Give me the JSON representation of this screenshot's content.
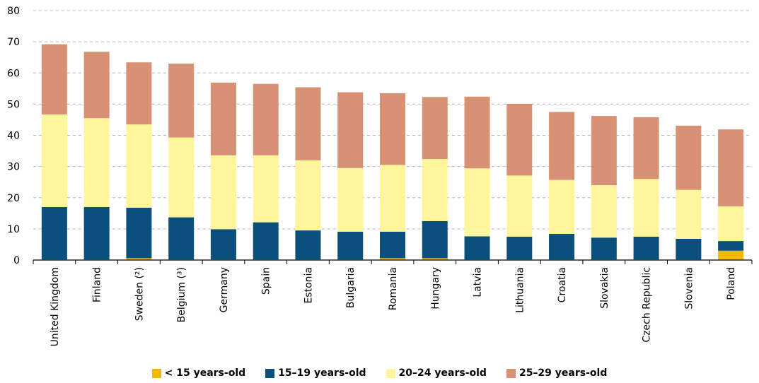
{
  "chart_data": {
    "type": "bar",
    "stacked": true,
    "title": "",
    "xlabel": "",
    "ylabel": "",
    "ylim": [
      0,
      80
    ],
    "yticks": [
      0,
      10,
      20,
      30,
      40,
      50,
      60,
      70,
      80
    ],
    "grid": "horizontal dashed",
    "legend_position": "bottom",
    "categories": [
      "United Kingdom",
      "Finland",
      "Sweden (²)",
      "Belgium (³)",
      "Germany",
      "Spain",
      "Estonia",
      "Bulgaria",
      "Romania",
      "Hungary",
      "Latvia",
      "Lithuania",
      "Croatia",
      "Slovakia",
      "Czech Republic",
      "Slovenia",
      "Poland"
    ],
    "series": [
      {
        "name": "< 15 years-old",
        "color": "#f5b800",
        "values": [
          0.2,
          0.2,
          0.6,
          0.2,
          0.2,
          0.2,
          0.2,
          0.2,
          0.6,
          0.6,
          0.2,
          0.2,
          0.2,
          0.2,
          0.2,
          0.2,
          3.0
        ]
      },
      {
        "name": "15–19 years-old",
        "color": "#0b4f7d",
        "values": [
          16.8,
          16.8,
          16.2,
          13.5,
          9.7,
          11.9,
          9.3,
          8.9,
          8.5,
          11.9,
          7.4,
          7.3,
          8.2,
          7.0,
          7.3,
          6.6,
          3.1
        ]
      },
      {
        "name": "20–24 years-old",
        "color": "#fff59a",
        "values": [
          29.7,
          28.5,
          26.7,
          25.6,
          23.7,
          21.5,
          22.5,
          20.4,
          21.4,
          19.9,
          21.8,
          19.6,
          17.3,
          16.8,
          18.5,
          15.7,
          11.1
        ]
      },
      {
        "name": "25–29 years-old",
        "color": "#d79175",
        "values": [
          22.5,
          21.3,
          19.9,
          23.7,
          23.3,
          22.9,
          23.4,
          24.3,
          23.0,
          19.9,
          23.0,
          23.0,
          21.8,
          22.2,
          19.8,
          20.6,
          24.7
        ]
      }
    ]
  }
}
